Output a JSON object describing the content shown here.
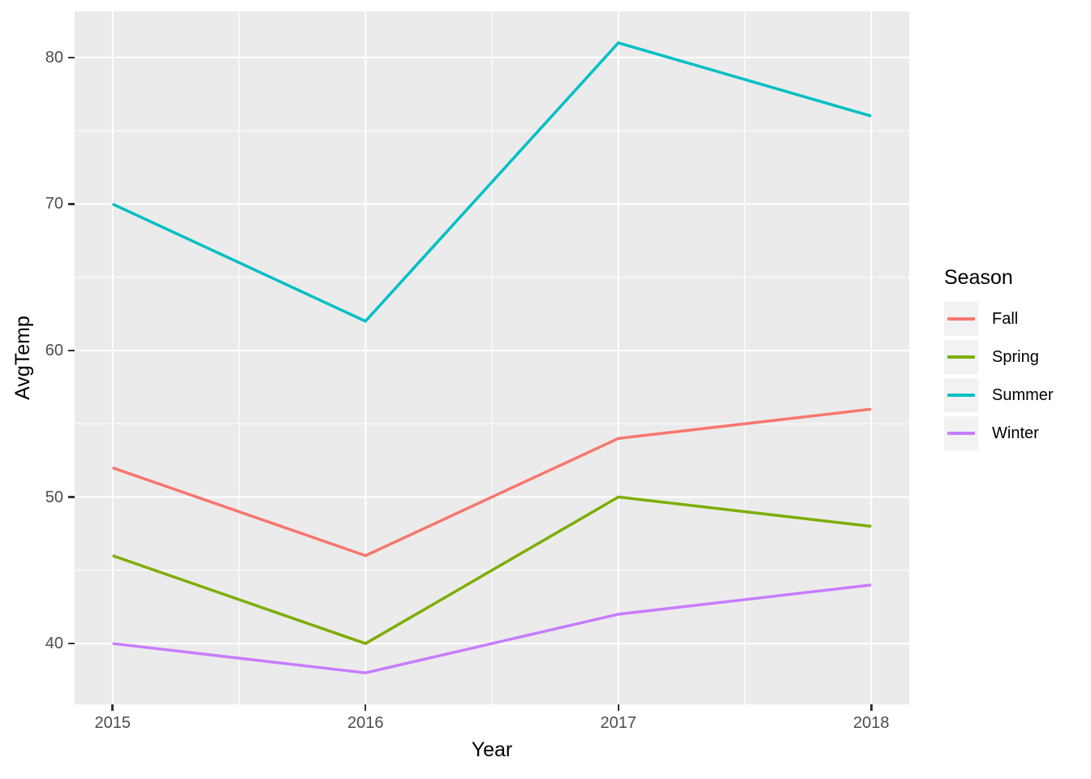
{
  "figure": {
    "background": "#FFFFFF",
    "panel_background": "#EBEBEB",
    "grid_color": "#FFFFFF",
    "tick_mark_color": "#333333",
    "tick_label_color": "#4D4D4D",
    "axis_title_color": "#000000",
    "legend_key_background": "#F2F2F2"
  },
  "chart_data": {
    "type": "line",
    "title": "",
    "xlabel": "Year",
    "ylabel": "AvgTemp",
    "x": [
      2015,
      2016,
      2017,
      2018
    ],
    "series": [
      {
        "name": "Fall",
        "color": "#F8766D",
        "values": [
          52,
          46,
          54,
          56
        ]
      },
      {
        "name": "Spring",
        "color": "#7CAE00",
        "values": [
          46,
          40,
          50,
          48
        ]
      },
      {
        "name": "Summer",
        "color": "#00BFC4",
        "values": [
          70,
          62,
          81,
          76
        ]
      },
      {
        "name": "Winter",
        "color": "#C77CFF",
        "values": [
          40,
          38,
          42,
          44
        ]
      }
    ],
    "x_ticks": [
      2015,
      2016,
      2017,
      2018
    ],
    "y_ticks": [
      40,
      50,
      60,
      70,
      80
    ],
    "x_minor_ticks": [
      2015.5,
      2016.5,
      2017.5
    ],
    "y_minor_ticks": [
      45,
      55,
      65,
      75
    ],
    "xlim": [
      2014.85,
      2018.15
    ],
    "ylim": [
      35.85,
      83.15
    ],
    "grid": true,
    "legend_title": "Season",
    "legend_position": "right"
  }
}
